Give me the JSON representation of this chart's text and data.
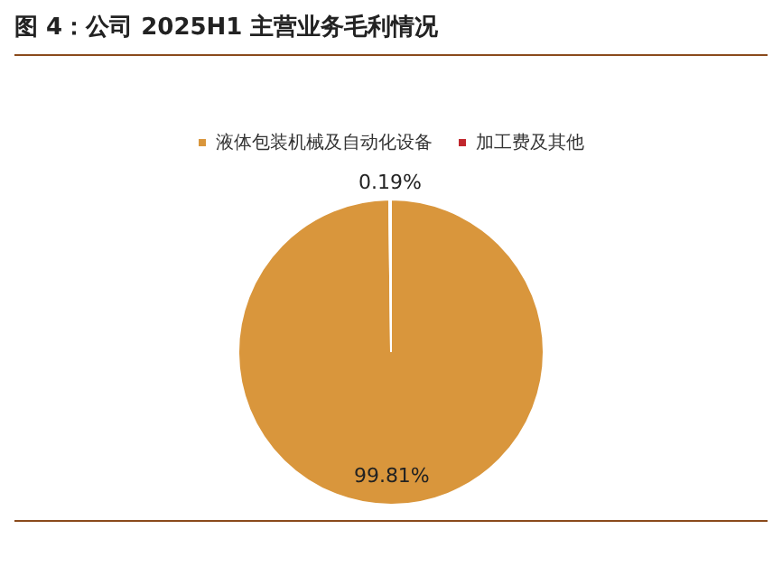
{
  "chart_data": {
    "type": "pie",
    "title": "图 4：公司 2025H1 主营业务毛利情况",
    "categories": [
      "液体包装机械及自动化设备",
      "加工费及其他"
    ],
    "values": [
      99.81,
      0.19
    ],
    "colors": [
      "#d9963c",
      "#c1272d"
    ],
    "value_labels": [
      "99.81%",
      "0.19%"
    ],
    "legend": "top"
  }
}
